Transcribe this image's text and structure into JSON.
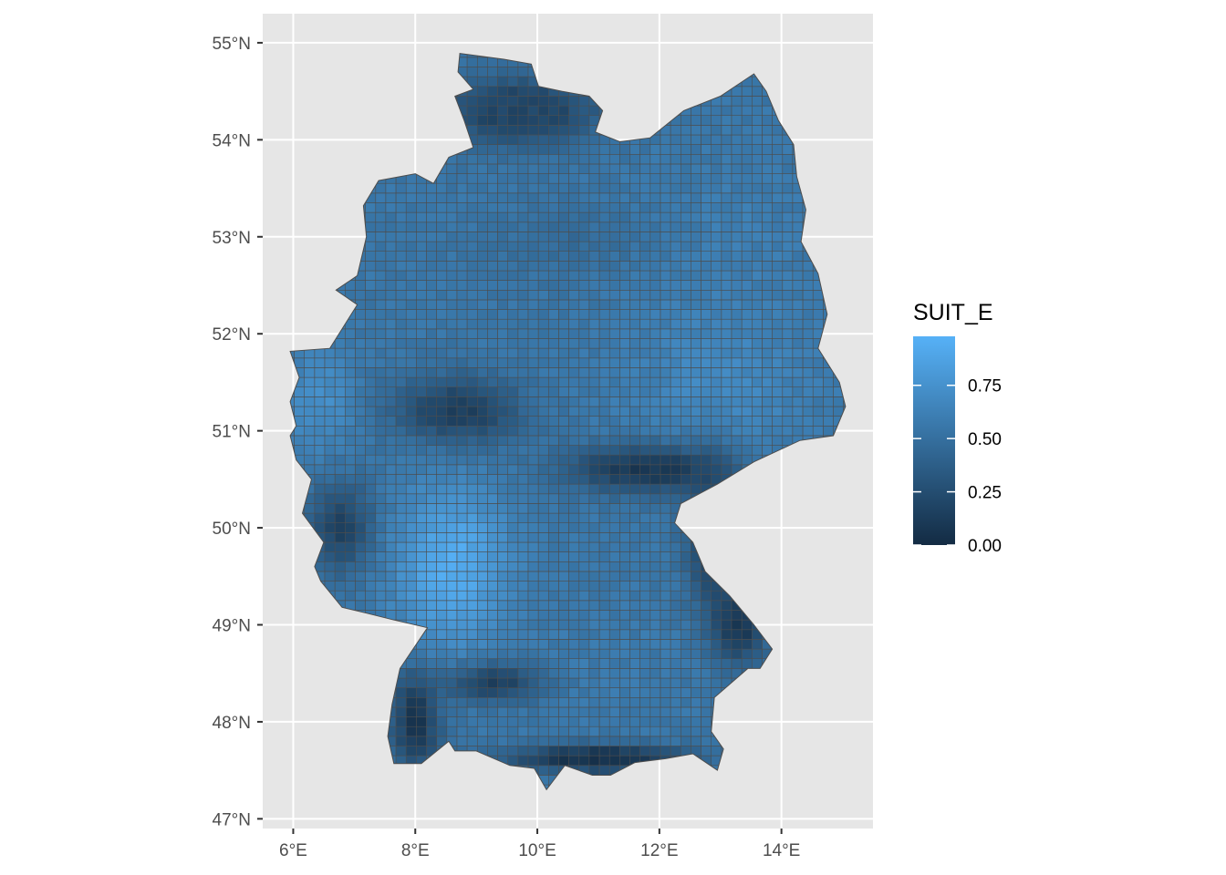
{
  "map": {
    "region": "Germany",
    "variable": "SUIT_E",
    "lon_range": [
      5.5,
      15.5
    ],
    "lat_range": [
      46.9,
      55.3
    ],
    "grid_cell_deg": [
      0.166667,
      0.1
    ],
    "colors": {
      "panel_background": "#e6e6e6",
      "gridline": "#ffffff",
      "cell_border": "#4d4d4d",
      "scale_low": "#132b43",
      "scale_high": "#56b1f7"
    },
    "lon_ticks": [
      {
        "value": 6,
        "label": "6°E"
      },
      {
        "value": 8,
        "label": "8°E"
      },
      {
        "value": 10,
        "label": "10°E"
      },
      {
        "value": 12,
        "label": "12°E"
      },
      {
        "value": 14,
        "label": "14°E"
      }
    ],
    "lat_ticks": [
      {
        "value": 55,
        "label": "55°N"
      },
      {
        "value": 54,
        "label": "54°N"
      },
      {
        "value": 53,
        "label": "53°N"
      },
      {
        "value": 52,
        "label": "52°N"
      },
      {
        "value": 51,
        "label": "51°N"
      },
      {
        "value": 50,
        "label": "50°N"
      },
      {
        "value": 49,
        "label": "49°N"
      },
      {
        "value": 48,
        "label": "48°N"
      },
      {
        "value": 47,
        "label": "47°N"
      }
    ],
    "suitability_zones": [
      {
        "area": "north-coast",
        "level": 0.2
      },
      {
        "area": "north-east",
        "level": 0.6
      },
      {
        "area": "north-central",
        "level": 0.45
      },
      {
        "area": "harz-central",
        "level": 0.15
      },
      {
        "area": "west",
        "level": 0.75
      },
      {
        "area": "east",
        "level": 0.72
      },
      {
        "area": "central-uplands",
        "level": 0.1
      },
      {
        "area": "east-border",
        "level": 0.1
      },
      {
        "area": "hunsrueck-west",
        "level": 0.15
      },
      {
        "area": "rhine-main",
        "level": 0.95
      },
      {
        "area": "south-central",
        "level": 0.6
      },
      {
        "area": "black-forest",
        "level": 0.1
      },
      {
        "area": "swabian-alb",
        "level": 0.15
      },
      {
        "area": "bavarian-forest",
        "level": 0.1
      },
      {
        "area": "alps",
        "level": 0.05
      }
    ]
  },
  "legend": {
    "title": "SUIT_E",
    "range": [
      0,
      0.98
    ],
    "breaks": [
      {
        "value": 0.75,
        "label": "0.75"
      },
      {
        "value": 0.5,
        "label": "0.50"
      },
      {
        "value": 0.25,
        "label": "0.25"
      },
      {
        "value": 0.0,
        "label": "0.00"
      }
    ]
  }
}
